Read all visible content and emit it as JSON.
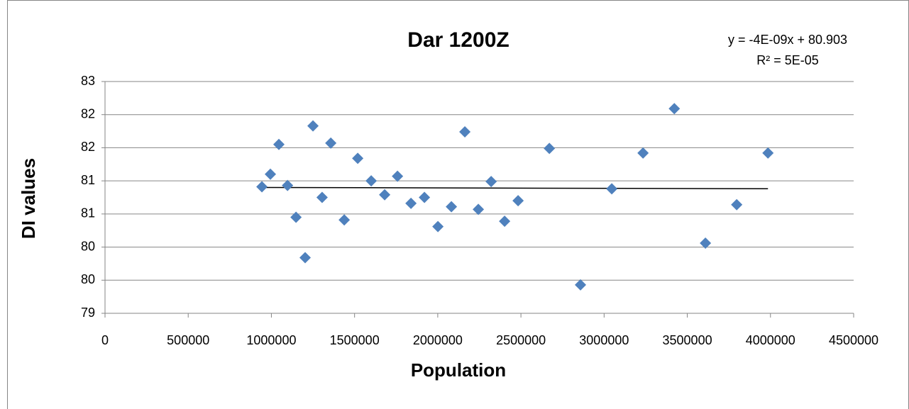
{
  "chart_data": {
    "type": "scatter",
    "title": "Dar 1200Z",
    "annotations": [
      "y = -4E-09x + 80.903",
      "R² = 5E-05"
    ],
    "xlabel": "Population",
    "ylabel": "DI values",
    "series": [
      {
        "color": "#4f81bd",
        "x": [
          943000,
          994000,
          1045000,
          1097000,
          1148000,
          1203000,
          1250000,
          1305000,
          1357000,
          1438000,
          1519000,
          1600000,
          1681000,
          1758000,
          1839000,
          1920000,
          2001000,
          2082000,
          2163000,
          2244000,
          2321000,
          2402000,
          2483000,
          2671000,
          2858000,
          3046000,
          3234000,
          3422000,
          3609000,
          3797000,
          3985000
        ],
        "values": [
          80.91,
          81.1,
          81.55,
          80.93,
          80.45,
          79.84,
          81.83,
          80.75,
          81.57,
          80.41,
          81.34,
          81.0,
          80.79,
          81.07,
          80.66,
          80.75,
          80.31,
          80.61,
          81.74,
          80.57,
          80.99,
          80.39,
          80.7,
          81.49,
          79.43,
          80.88,
          81.42,
          82.09,
          80.06,
          80.64,
          81.42
        ]
      }
    ],
    "trendline": "linear",
    "xlim": [
      0,
      4500000
    ],
    "xticks": [
      0,
      500000,
      1000000,
      1500000,
      2000000,
      2500000,
      3000000,
      3500000,
      4000000,
      4500000
    ],
    "ylim": [
      79,
      82.5
    ],
    "yticks": [
      79,
      {
        "value": 79.5,
        "label": "80"
      },
      80,
      {
        "value": 80.5,
        "label": "81"
      },
      81,
      {
        "value": 81.5,
        "label": "82"
      },
      82,
      {
        "value": 82.5,
        "label": "83"
      }
    ],
    "grid": true
  }
}
